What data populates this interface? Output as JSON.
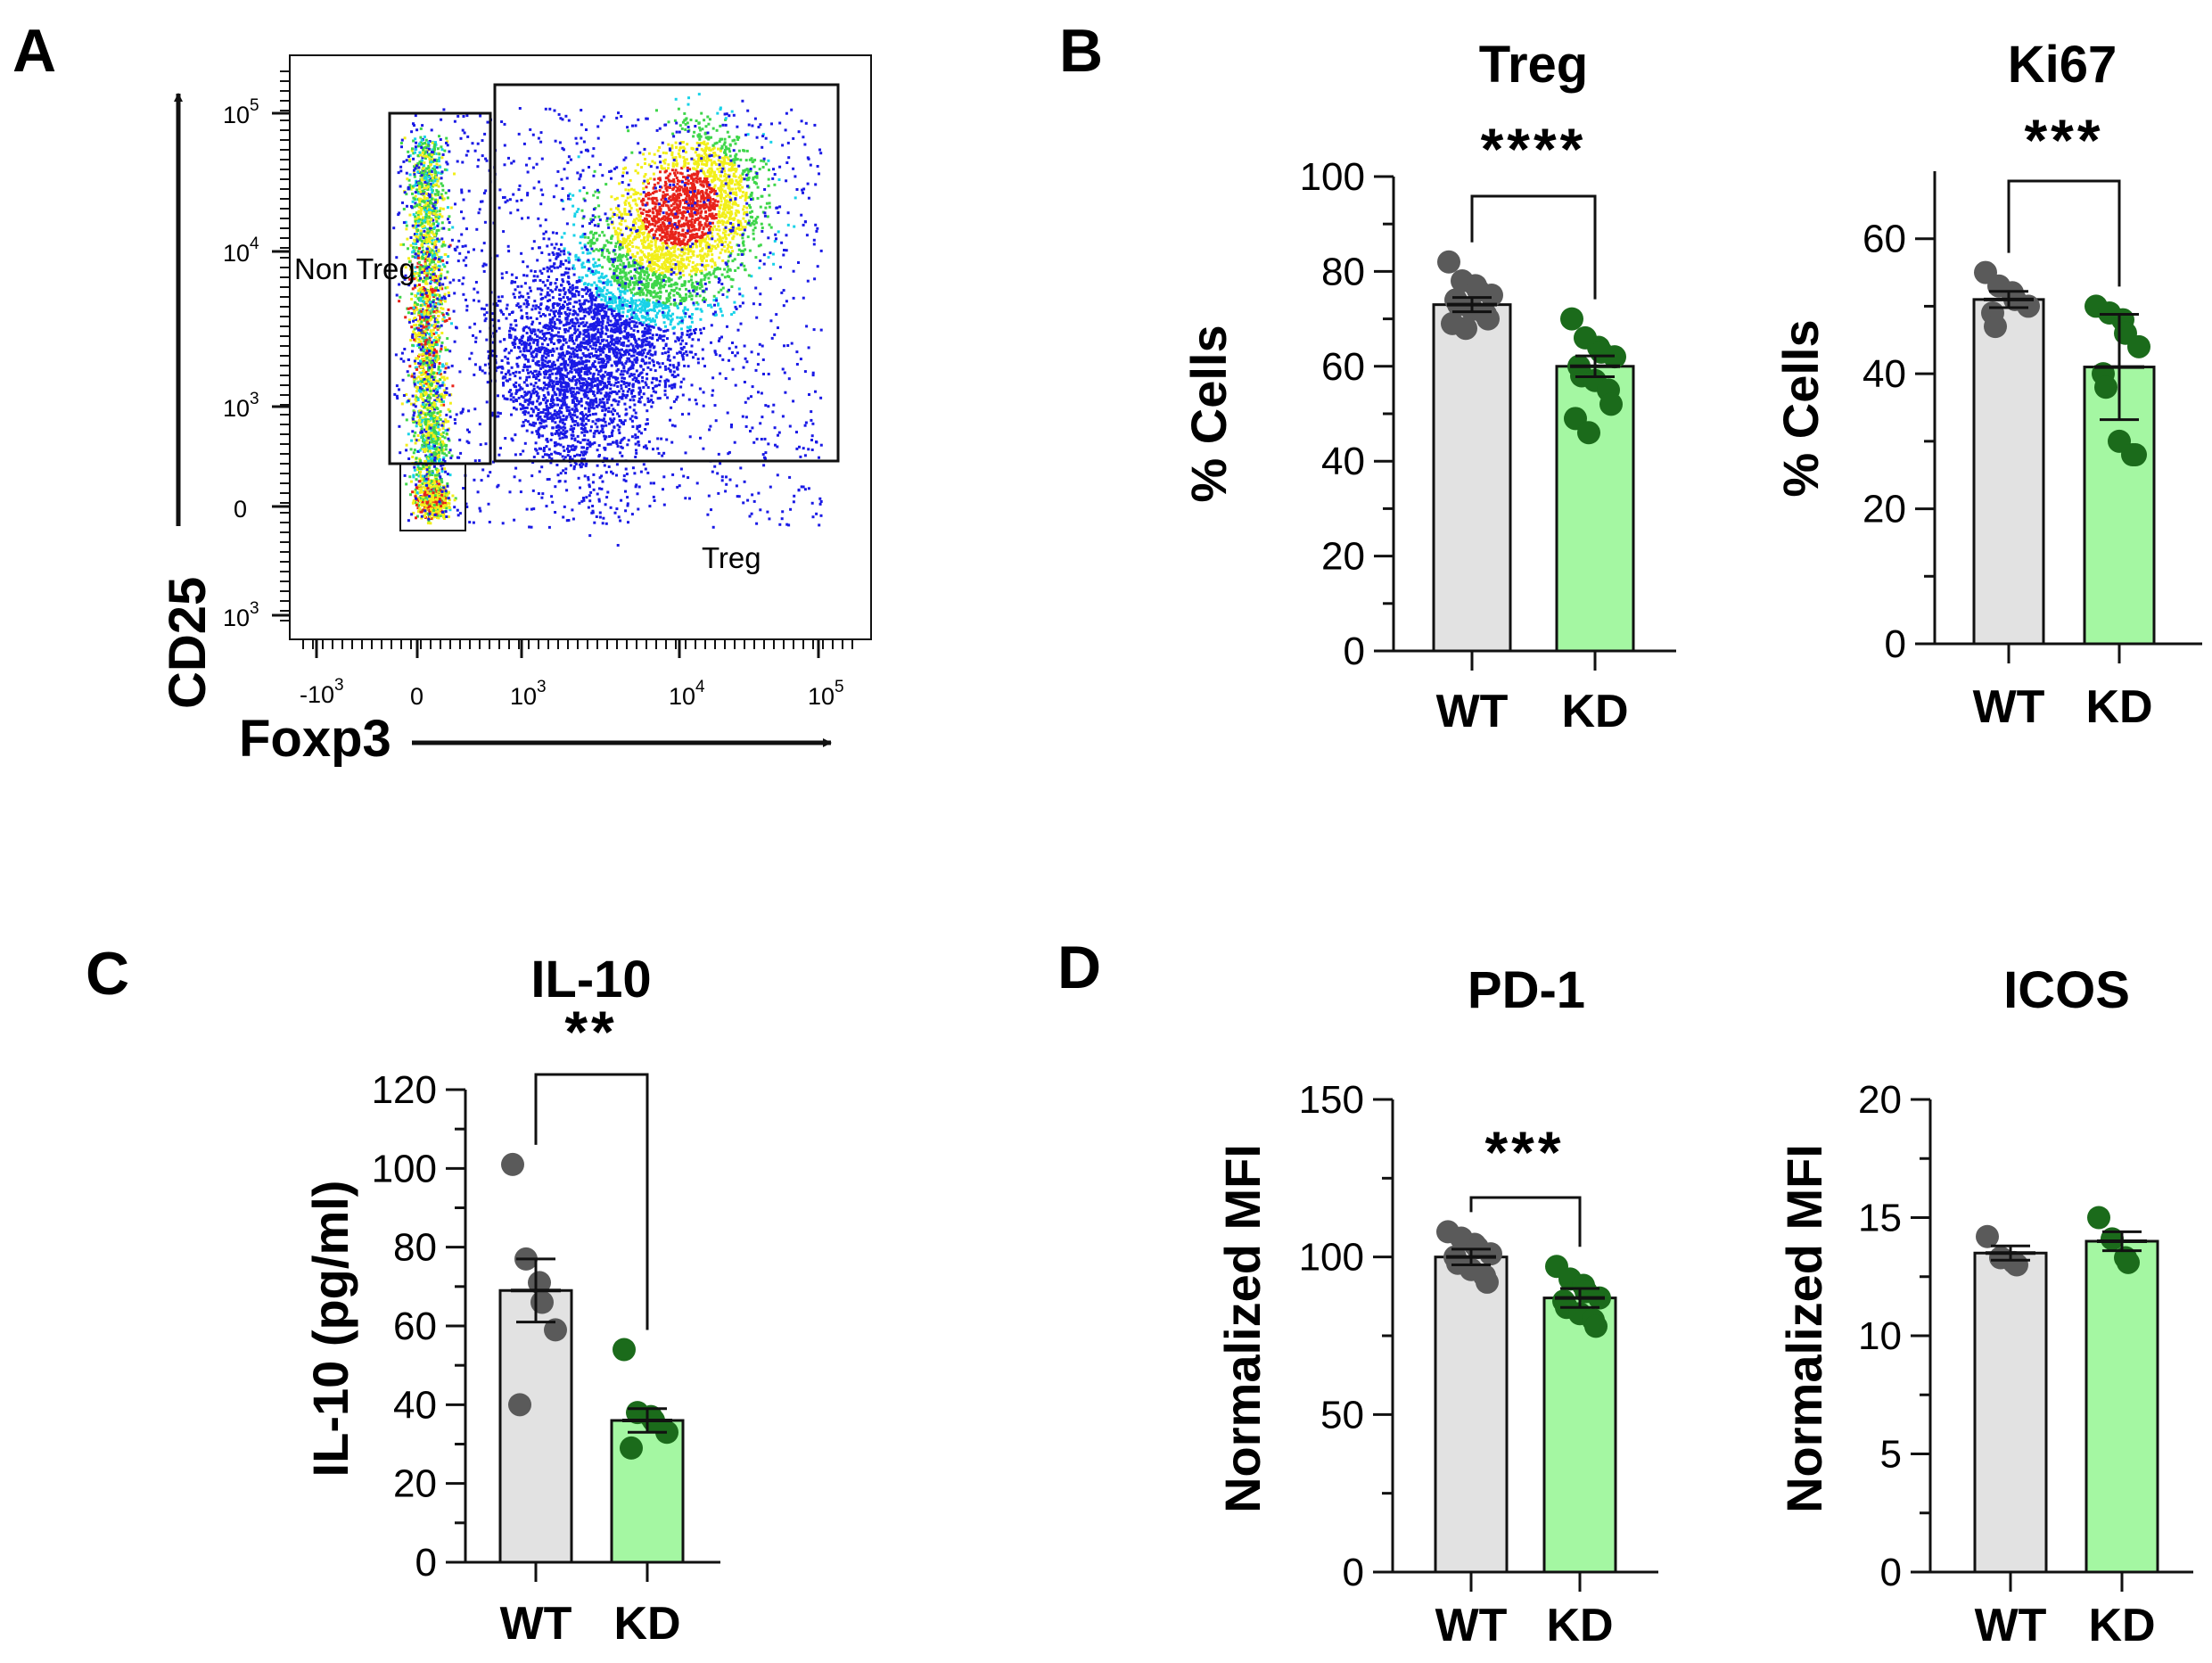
{
  "colors": {
    "axis": "#111111",
    "wt_bar": "#e2e2e2",
    "kd_bar": "#a4f7a2",
    "wt_dot": "#5a5a5a",
    "kd_dot": "#1b6b1b",
    "flow_low": "#1a1ae6",
    "flow_mid": "#18d2e8",
    "flow_hi1": "#f2ef1a",
    "flow_hi2": "#e8231a"
  },
  "panels": {
    "A": {
      "letter": "A"
    },
    "B": {
      "letter": "B"
    },
    "C": {
      "letter": "C"
    },
    "D": {
      "letter": "D"
    }
  },
  "flow": {
    "x_label": "Foxp3",
    "y_label": "CD25",
    "gates": {
      "non_treg": "Non Treg",
      "treg": "Treg"
    },
    "x_ticks": [
      {
        "base": "-10",
        "exp": "3"
      },
      {
        "base": "0",
        "exp": ""
      },
      {
        "base": "10",
        "exp": "3"
      },
      {
        "base": "10",
        "exp": "4"
      },
      {
        "base": "10",
        "exp": "5"
      }
    ],
    "y_ticks": [
      {
        "base": "10",
        "exp": "5"
      },
      {
        "base": "10",
        "exp": "4"
      },
      {
        "base": "10",
        "exp": "3"
      },
      {
        "base": "0",
        "exp": ""
      },
      {
        "base": "10",
        "exp": "3"
      }
    ]
  },
  "chart_data": [
    {
      "id": "treg",
      "type": "bar",
      "panel": "B",
      "title": "Treg",
      "ylabel": "% Cells",
      "ylim": [
        0,
        100
      ],
      "yticks": [
        0,
        20,
        40,
        60,
        80,
        100
      ],
      "categories": [
        "WT",
        "KD"
      ],
      "values": [
        73,
        60
      ],
      "errors": [
        1.5,
        2.2
      ],
      "points": [
        [
          82,
          78,
          77,
          76,
          75,
          74,
          73,
          72,
          71,
          70,
          69,
          68
        ],
        [
          70,
          66,
          64,
          63,
          62,
          60,
          58,
          57,
          55,
          52,
          49,
          46
        ]
      ],
      "significance": "****"
    },
    {
      "id": "ki67",
      "type": "bar",
      "panel": "B",
      "title": "Ki67",
      "ylabel": "% Cells",
      "ylim": [
        0,
        70
      ],
      "yticks": [
        0,
        20,
        40,
        60
      ],
      "categories": [
        "WT",
        "KD"
      ],
      "values": [
        51,
        41
      ],
      "errors": [
        1.2,
        7.8
      ],
      "points": [
        [
          55,
          53,
          52,
          51,
          50,
          49,
          47
        ],
        [
          50,
          49,
          48,
          46,
          44,
          40,
          38,
          30,
          28,
          28
        ]
      ],
      "significance": "***"
    },
    {
      "id": "il10",
      "type": "bar",
      "panel": "C",
      "title": "IL-10",
      "ylabel": "IL-10 (pg/ml)",
      "ylim": [
        0,
        120
      ],
      "yticks": [
        0,
        20,
        40,
        60,
        80,
        100,
        120
      ],
      "categories": [
        "WT",
        "KD"
      ],
      "values": [
        69,
        36
      ],
      "errors": [
        8,
        3
      ],
      "points": [
        [
          101,
          77,
          71,
          66,
          59,
          40
        ],
        [
          54,
          38,
          37,
          36,
          33,
          29
        ]
      ],
      "significance": "**"
    },
    {
      "id": "pd1",
      "type": "bar",
      "panel": "D",
      "title": "PD-1",
      "ylabel": "Normalized MFI",
      "ylim": [
        0,
        150
      ],
      "yticks": [
        0,
        50,
        100,
        150
      ],
      "categories": [
        "WT",
        "KD"
      ],
      "values": [
        100,
        87
      ],
      "errors": [
        2.5,
        3
      ],
      "points": [
        [
          108,
          106,
          104,
          103,
          101,
          100,
          98,
          96,
          94,
          92
        ],
        [
          97,
          93,
          91,
          89,
          87,
          86,
          84,
          82,
          80,
          78
        ]
      ],
      "significance": "***"
    },
    {
      "id": "icos",
      "type": "bar",
      "panel": "D",
      "title": "ICOS",
      "ylabel": "Normalized MFI",
      "ylim": [
        0,
        20
      ],
      "yticks": [
        0,
        5,
        10,
        15,
        20
      ],
      "categories": [
        "WT",
        "KD"
      ],
      "values": [
        13.5,
        14
      ],
      "errors": [
        0.3,
        0.4
      ],
      "points": [
        [
          14.2,
          13.3,
          13.1,
          13.0
        ],
        [
          15.0,
          14.1,
          13.3,
          13.1
        ]
      ],
      "significance": ""
    }
  ]
}
